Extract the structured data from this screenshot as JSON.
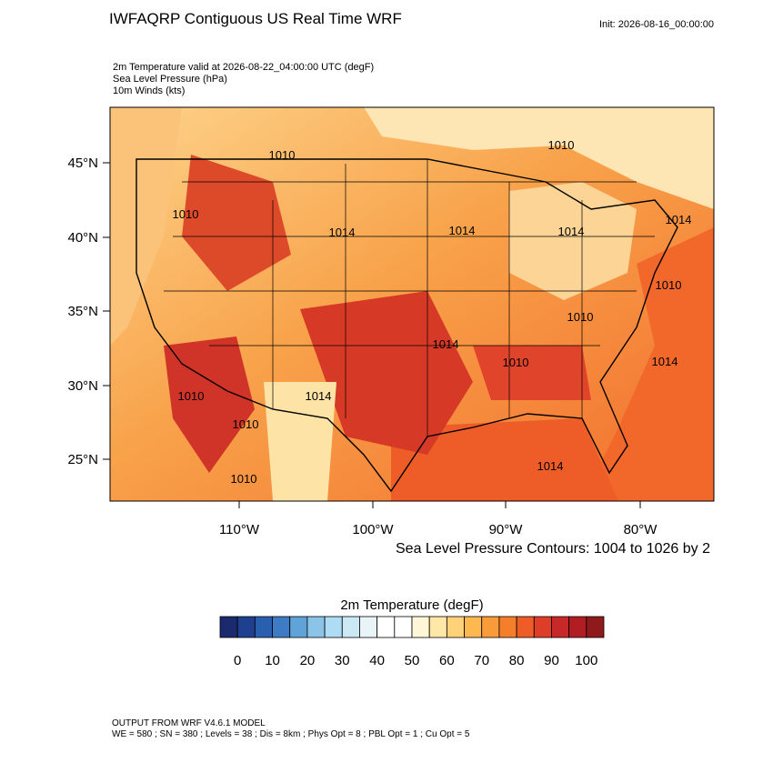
{
  "header": {
    "title": "IWFAQRP Contiguous US Real Time WRF",
    "init": "Init: 2026-08-16_00:00:00",
    "fields": [
      "2m Temperature valid at 2026-08-22_04:00:00 UTC   (degF)",
      "Sea Level Pressure   (hPa)",
      "10m Winds   (kts)"
    ]
  },
  "map": {
    "lat_labels": [
      "45°N",
      "40°N",
      "35°N",
      "30°N",
      "25°N"
    ],
    "lon_labels": [
      "110°W",
      "100°W",
      "90°W",
      "80°W"
    ],
    "contour_labels": [
      "1010",
      "1010",
      "1010",
      "1014",
      "1014",
      "1014",
      "1014",
      "1010",
      "1010",
      "1014",
      "1010",
      "1014",
      "1010",
      "1014",
      "1010",
      "1014",
      "1010"
    ],
    "contour_note": "Sea Level Pressure Contours: 1004 to 1026 by 2"
  },
  "colorbar": {
    "title": "2m Temperature  (degF)",
    "colors": [
      "#1a2a6c",
      "#1f3f8f",
      "#2a5fb0",
      "#3d7cc4",
      "#5fa3d8",
      "#8cc4e8",
      "#aedcf5",
      "#cbe8f5",
      "#e8f4f8",
      "#ffffff",
      "#ffffff",
      "#fff6d8",
      "#ffe7a8",
      "#ffd27a",
      "#fdb84f",
      "#f99b38",
      "#f57e2b",
      "#ee5d28",
      "#de3e28",
      "#c82828",
      "#b01e24",
      "#8e1a1c"
    ],
    "ticks": [
      0,
      10,
      20,
      30,
      40,
      50,
      60,
      70,
      80,
      90,
      100
    ]
  },
  "footer": [
    "OUTPUT FROM WRF V4.6.1 MODEL",
    "WE = 580 ; SN = 380 ; Levels = 38 ; Dis = 8km ; Phys Opt = 8 ; PBL Opt = 1 ; Cu Opt = 5"
  ]
}
